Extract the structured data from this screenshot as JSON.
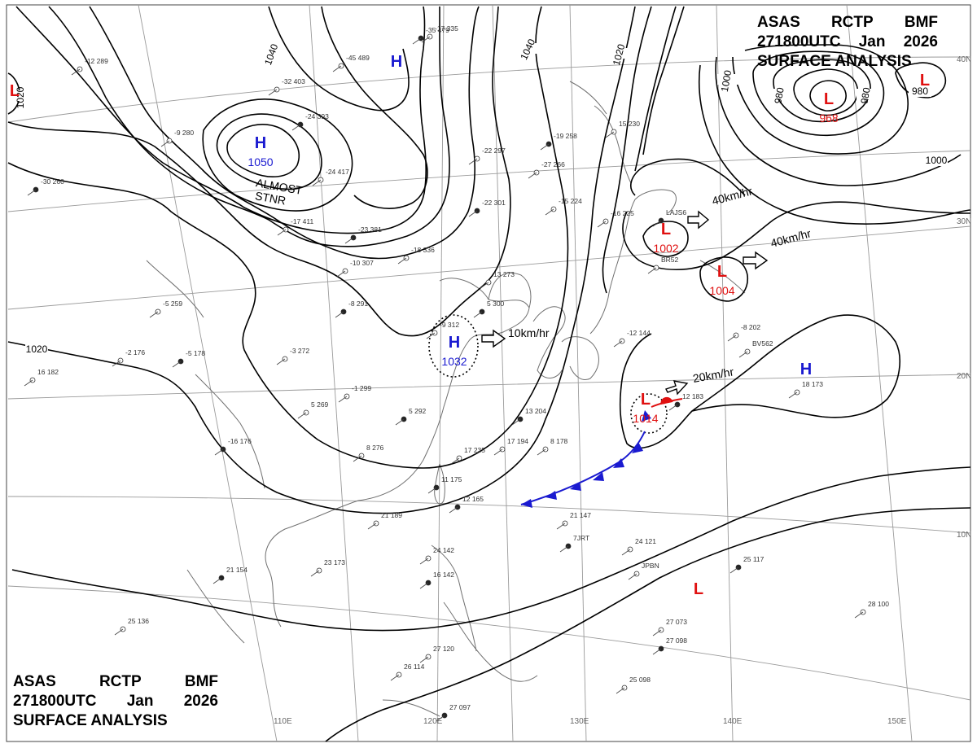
{
  "header": {
    "line1": [
      "ASAS",
      "RCTP",
      "BMF"
    ],
    "line2": [
      "271800UTC",
      "Jan",
      "2026"
    ],
    "line3": "SURFACE ANALYSIS"
  },
  "colors": {
    "high": "#1a1ad0",
    "low": "#e01010",
    "isobar": "#000000",
    "coast": "#707070",
    "grid": "#9a9a9a"
  },
  "isobars": [
    {
      "label": "1040"
    },
    {
      "label": "1040"
    },
    {
      "label": "1020"
    },
    {
      "label": "1020"
    },
    {
      "label": "1020"
    },
    {
      "label": "1000"
    },
    {
      "label": "1000"
    },
    {
      "label": "980"
    },
    {
      "label": "980"
    },
    {
      "label": "980"
    }
  ],
  "pressure_centers": [
    {
      "type": "H",
      "symbol": "H",
      "value": "1050",
      "note": [
        "ALMOST",
        "STNR"
      ]
    },
    {
      "type": "H",
      "symbol": "H",
      "value": ""
    },
    {
      "type": "H",
      "symbol": "H",
      "value": "1032"
    },
    {
      "type": "H",
      "symbol": "H",
      "value": ""
    },
    {
      "type": "L",
      "symbol": "L",
      "value": "968"
    },
    {
      "type": "L",
      "symbol": "L",
      "value": "1002"
    },
    {
      "type": "L",
      "symbol": "L",
      "value": "1004"
    },
    {
      "type": "L",
      "symbol": "L",
      "value": "1014"
    },
    {
      "type": "L",
      "symbol": "L",
      "value": ""
    },
    {
      "type": "L",
      "symbol": "L",
      "value": ""
    },
    {
      "type": "L",
      "symbol": "L",
      "value": ""
    }
  ],
  "motion_vectors": [
    {
      "text": "40km/hr"
    },
    {
      "text": "40km/hr"
    },
    {
      "text": "10km/hr"
    },
    {
      "text": "20km/hr"
    }
  ],
  "lat_labels": [
    "40N",
    "30N",
    "20N",
    "10N"
  ],
  "lon_labels": [
    "110E",
    "120E",
    "130E",
    "140E",
    "150E"
  ],
  "station_obs": [
    "-35 479",
    "-45 489",
    "-32 403",
    "-24 393",
    "-24 417",
    "-17 411",
    "-23 381",
    "-10 307",
    "-18 336",
    "-22 301",
    "-22 297",
    "-27 266",
    "-19 258",
    "-15 224",
    "-16 225",
    "-8 291",
    "-5 259",
    "-2 176",
    "-5 178",
    "-3 272",
    "-1 299",
    "-16 176",
    "16 182",
    "5 269",
    "5 292",
    "8 276",
    "17 235",
    "11 175",
    "17 194",
    "8 178",
    "13 204",
    "21 189",
    "23 173",
    "21 154",
    "25 136",
    "24 142",
    "16 142",
    "27 120",
    "26 114",
    "27 097",
    "21 147",
    "24 121",
    "25 117",
    "28 100",
    "27 073",
    "27 098",
    "25 098",
    "18 173",
    "12 183",
    "15 230",
    "13 273",
    "5 300",
    "-9 312",
    "-17 335",
    "12 165",
    "-12 289",
    "-9 280",
    "-30 260",
    "-12 144",
    "-8 202",
    "7JRT",
    "JPBN",
    "BV562",
    "LAJS6",
    "BR52"
  ]
}
